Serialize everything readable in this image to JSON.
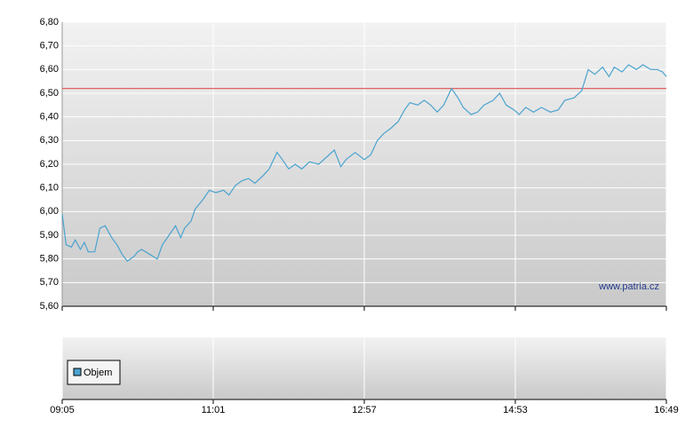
{
  "chart_data": {
    "type": "line",
    "x": [
      "09:05",
      "09:08",
      "09:12",
      "09:15",
      "09:19",
      "09:22",
      "09:25",
      "09:30",
      "09:34",
      "09:38",
      "09:43",
      "09:47",
      "09:51",
      "09:55",
      "10:00",
      "10:03",
      "10:06",
      "10:12",
      "10:18",
      "10:22",
      "10:27",
      "10:32",
      "10:36",
      "10:39",
      "10:44",
      "10:47",
      "10:53",
      "10:58",
      "11:03",
      "11:09",
      "11:13",
      "11:18",
      "11:23",
      "11:28",
      "11:33",
      "11:39",
      "11:44",
      "11:50",
      "11:54",
      "11:59",
      "12:04",
      "12:09",
      "12:15",
      "12:22",
      "12:28",
      "12:34",
      "12:39",
      "12:43",
      "12:50",
      "12:57",
      "13:02",
      "13:07",
      "13:12",
      "13:17",
      "13:23",
      "13:28",
      "13:32",
      "13:38",
      "13:43",
      "13:48",
      "13:53",
      "13:58",
      "14:04",
      "14:09",
      "14:13",
      "14:19",
      "14:24",
      "14:29",
      "14:36",
      "14:41",
      "14:46",
      "14:52",
      "14:56",
      "15:01",
      "15:07",
      "15:13",
      "15:20",
      "15:26",
      "15:31",
      "15:38",
      "15:44",
      "15:49",
      "15:54",
      "16:00",
      "16:05",
      "16:09",
      "16:15",
      "16:20",
      "16:26",
      "16:31",
      "16:37",
      "16:42",
      "16:46",
      "16:49"
    ],
    "series": [
      {
        "color": "#4aa3cf",
        "values": [
          5.99,
          5.86,
          5.85,
          5.88,
          5.84,
          5.87,
          5.83,
          5.83,
          5.93,
          5.94,
          5.89,
          5.86,
          5.82,
          5.79,
          5.81,
          5.83,
          5.84,
          5.82,
          5.8,
          5.86,
          5.9,
          5.94,
          5.89,
          5.93,
          5.96,
          6.01,
          6.05,
          6.09,
          6.08,
          6.09,
          6.07,
          6.11,
          6.13,
          6.14,
          6.12,
          6.15,
          6.18,
          6.25,
          6.22,
          6.18,
          6.2,
          6.18,
          6.21,
          6.2,
          6.23,
          6.26,
          6.19,
          6.22,
          6.25,
          6.22,
          6.24,
          6.3,
          6.33,
          6.35,
          6.38,
          6.43,
          6.46,
          6.45,
          6.47,
          6.45,
          6.42,
          6.45,
          6.52,
          6.48,
          6.44,
          6.41,
          6.42,
          6.45,
          6.47,
          6.5,
          6.45,
          6.43,
          6.41,
          6.44,
          6.42,
          6.44,
          6.42,
          6.43,
          6.47,
          6.48,
          6.51,
          6.6,
          6.58,
          6.61,
          6.57,
          6.61,
          6.59,
          6.62,
          6.6,
          6.62,
          6.6,
          6.6,
          6.59,
          6.57
        ]
      }
    ],
    "reference_line": {
      "value": 6.52,
      "color": "#e05050"
    },
    "xlim": [
      "09:05",
      "16:49"
    ],
    "xticks": [
      "09:05",
      "11:01",
      "12:57",
      "14:53",
      "16:49"
    ],
    "ylim": [
      5.6,
      6.8
    ],
    "yticks": [
      {
        "value": 5.6,
        "label": "5,60"
      },
      {
        "value": 5.7,
        "label": "5,70"
      },
      {
        "value": 5.8,
        "label": "5,80"
      },
      {
        "value": 5.9,
        "label": "5,90"
      },
      {
        "value": 6.0,
        "label": "6,00"
      },
      {
        "value": 6.1,
        "label": "6,10"
      },
      {
        "value": 6.2,
        "label": "6,20"
      },
      {
        "value": 6.3,
        "label": "6,30"
      },
      {
        "value": 6.4,
        "label": "6,40"
      },
      {
        "value": 6.5,
        "label": "6,50"
      },
      {
        "value": 6.6,
        "label": "6,60"
      },
      {
        "value": 6.7,
        "label": "6,70"
      },
      {
        "value": 6.8,
        "label": "6,80"
      }
    ],
    "grid": true,
    "annotation": "www.patria.cz",
    "volume_legend": {
      "name": "Objem",
      "color": "#4aa3cf"
    }
  }
}
